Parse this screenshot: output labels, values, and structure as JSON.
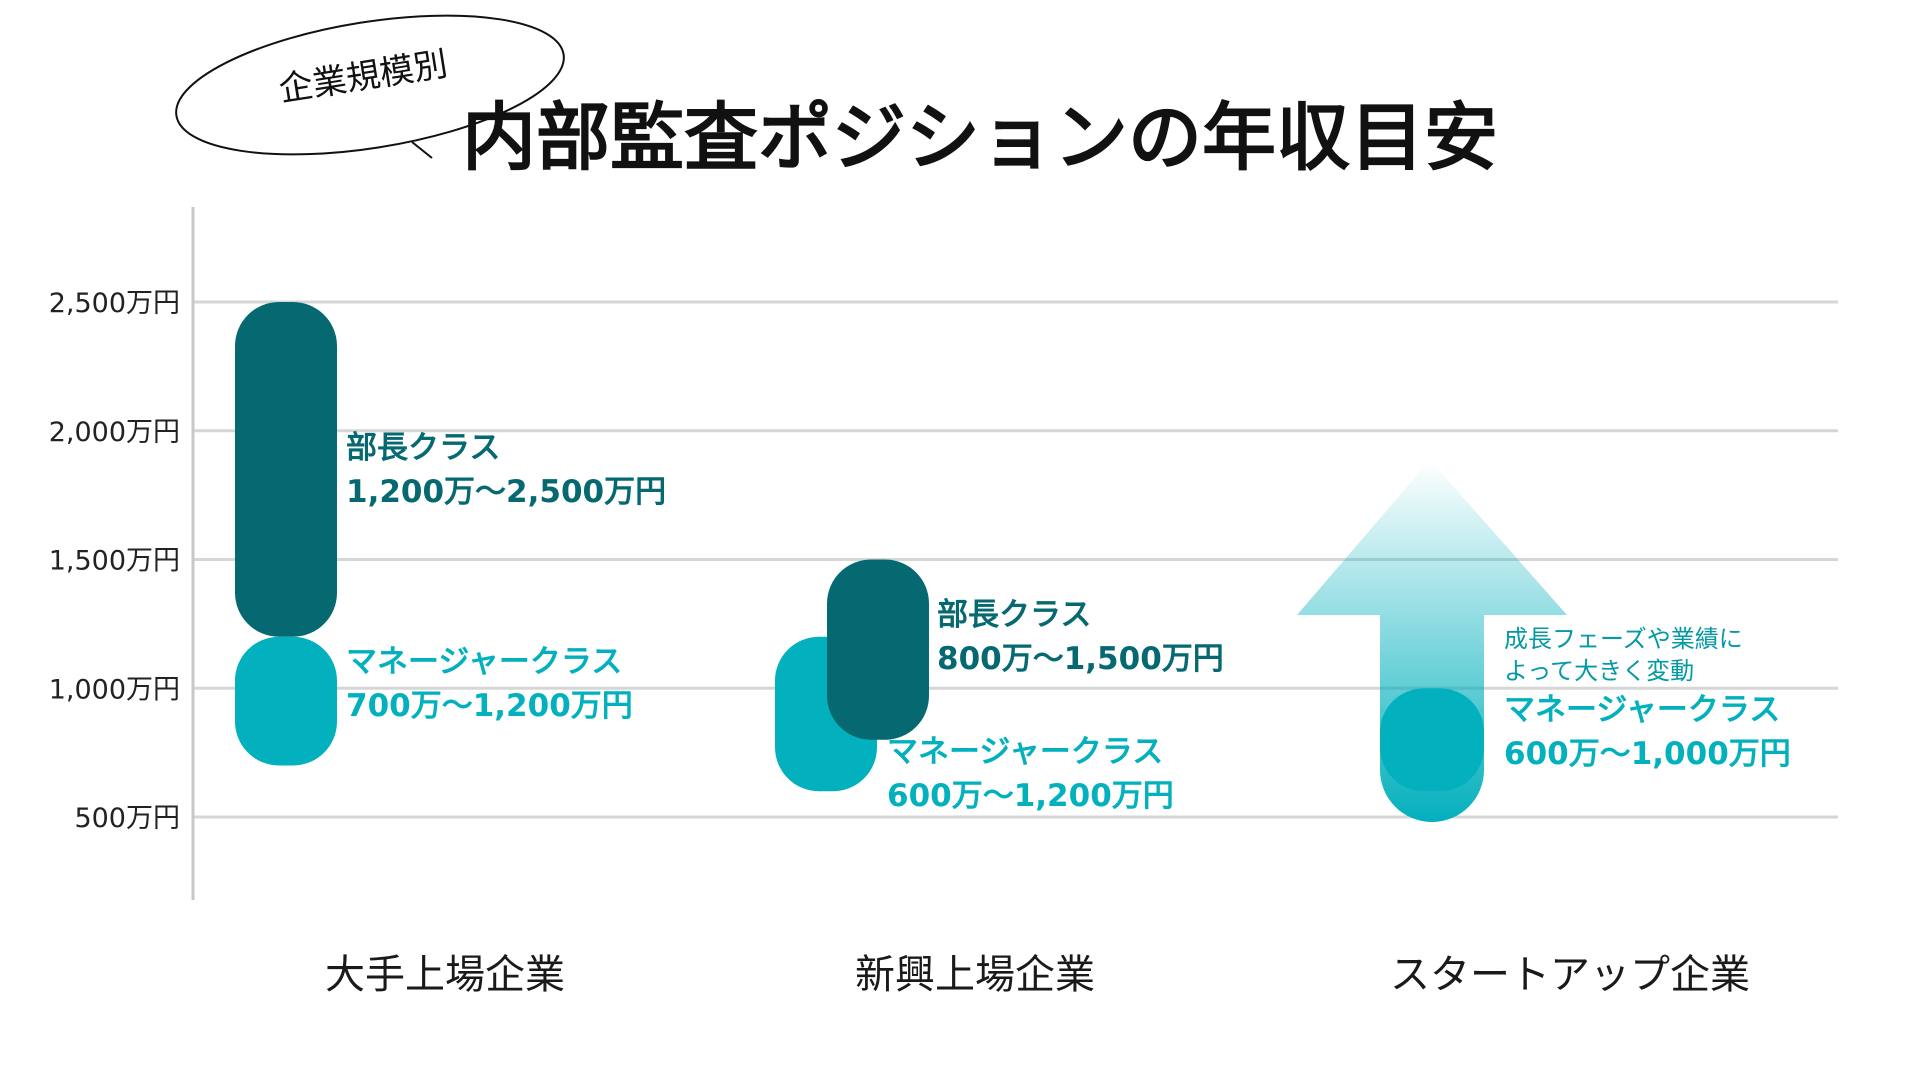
{
  "subtitle": "企業規模別",
  "title": "内部監査ポジションの年収目安",
  "colors": {
    "director": "#066972",
    "manager": "#03b0bd",
    "grid": "#d6d6d6",
    "axis": "#c8c8c8"
  },
  "chart_data": {
    "type": "bar",
    "subtype": "floating-range",
    "title": "内部監査ポジションの年収目安",
    "subtitle": "企業規模別",
    "ylim": [
      200,
      2750
    ],
    "yticks": [
      500,
      1000,
      1500,
      2000,
      2500
    ],
    "ytick_labels": [
      "500万円",
      "1,000万円",
      "1,500万円",
      "2,000万円",
      "2,500万円"
    ],
    "grid": true,
    "categories": [
      "大手上場企業",
      "新興上場企業",
      "スタートアップ企業"
    ],
    "series": [
      {
        "name": "部長クラス",
        "color": "#066972",
        "ranges": [
          [
            1200,
            2500
          ],
          [
            800,
            1500
          ],
          null
        ],
        "labels": [
          "1,200万〜2,500万円",
          "800万〜1,500万円",
          null
        ]
      },
      {
        "name": "マネージャークラス",
        "color": "#03b0bd",
        "ranges": [
          [
            700,
            1200
          ],
          [
            600,
            1200
          ],
          [
            600,
            1000
          ]
        ],
        "labels": [
          "700万〜1,200万円",
          "600万〜1,200万円",
          "600万〜1,000万円"
        ]
      }
    ],
    "annotations": [
      {
        "category": "スタートアップ企業",
        "text_lines": [
          "成長フェーズや業績に",
          "よって大きく変動"
        ],
        "icon": "up-arrow-icon"
      }
    ]
  }
}
